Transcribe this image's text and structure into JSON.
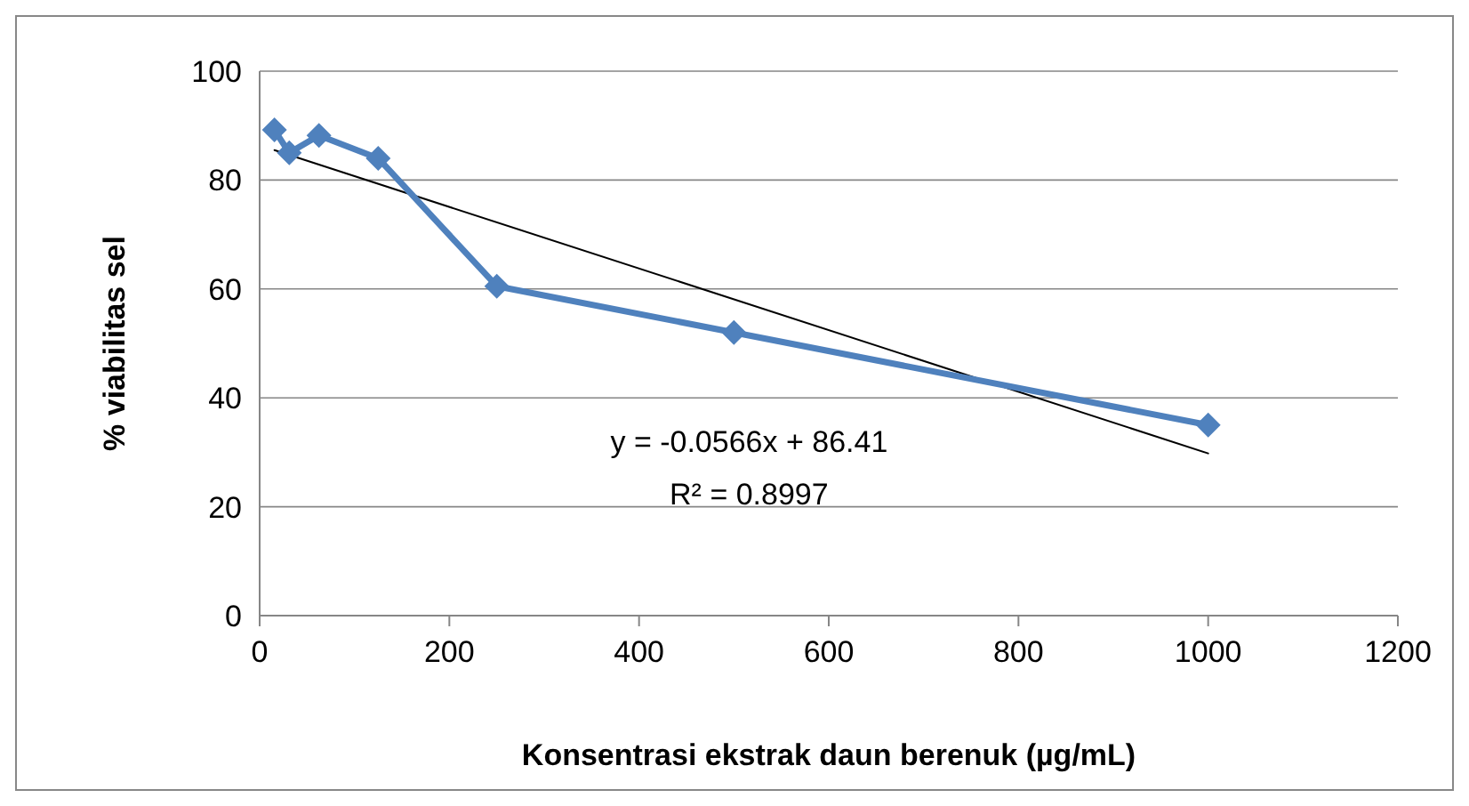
{
  "chart_data": {
    "type": "line",
    "xlabel": "Konsentrasi ekstrak daun berenuk (µg/mL)",
    "ylabel": "% viabilitas sel",
    "xlim": [
      0,
      1200
    ],
    "xticks": [
      0,
      200,
      400,
      600,
      800,
      1000,
      1200
    ],
    "ylim": [
      0,
      100
    ],
    "yticks": [
      0,
      20,
      40,
      60,
      80,
      100
    ],
    "grid": "y",
    "series": [
      {
        "color": "#4f81bd",
        "marker": "diamond",
        "x": [
          15.6,
          31.25,
          62.5,
          125,
          250,
          500,
          1000
        ],
        "values": [
          89.2,
          85,
          88.2,
          84,
          60.5,
          52,
          35
        ]
      },
      {
        "type": "line",
        "color": "#000000",
        "marker": "none",
        "x": [
          15.6,
          1000
        ],
        "values": [
          85.5,
          29.8
        ]
      }
    ],
    "annotations": [
      "y = -0.0566x + 86.41",
      "R² = 0.8997"
    ]
  }
}
